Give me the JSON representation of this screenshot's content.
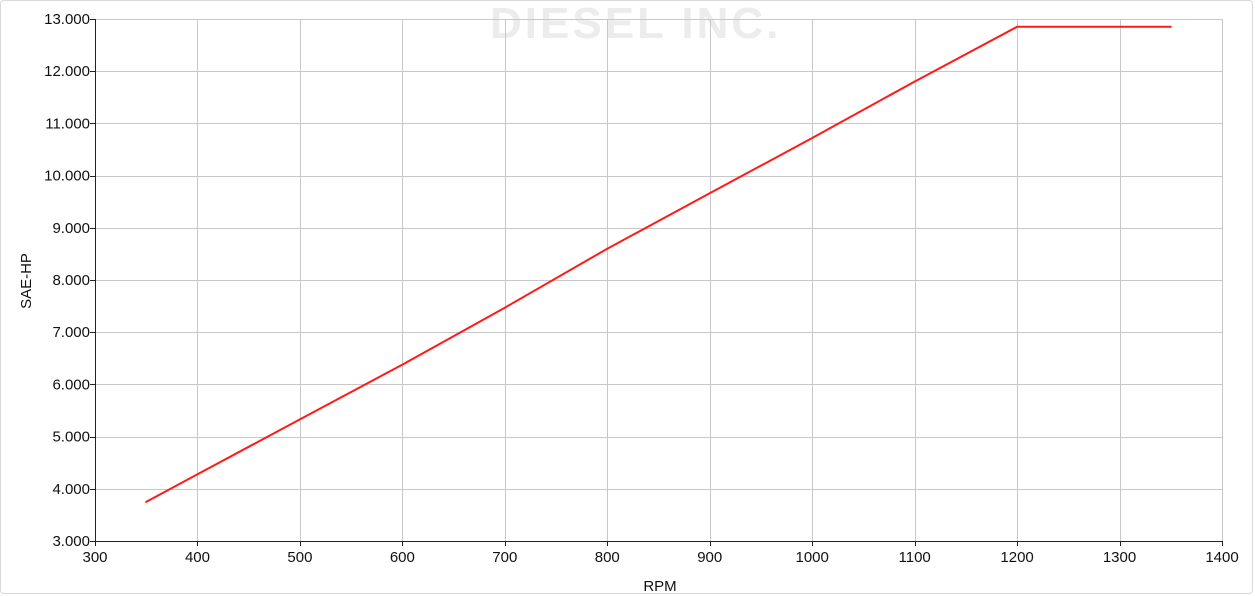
{
  "watermark": {
    "text": "DIESEL INC."
  },
  "colors": {
    "line": "#ff1a1a",
    "grid": "#c8c8c8",
    "axis": "#222222",
    "watermark": "#ececec"
  },
  "chart_data": {
    "type": "line",
    "title": "",
    "xlabel": "RPM",
    "ylabel": "SAE-HP",
    "xlim": [
      300,
      1400
    ],
    "ylim": [
      3.0,
      13.0
    ],
    "xticks": [
      300,
      400,
      500,
      600,
      700,
      800,
      900,
      1000,
      1100,
      1200,
      1300,
      1400
    ],
    "xtick_labels": [
      "300",
      "400",
      "500",
      "600",
      "700",
      "800",
      "900",
      "1000",
      "1100",
      "1200",
      "1300",
      "1400"
    ],
    "yticks": [
      3,
      4,
      5,
      6,
      7,
      8,
      9,
      10,
      11,
      12,
      13
    ],
    "ytick_labels": [
      "3.000",
      "4.000",
      "5.000",
      "6.000",
      "7.000",
      "8.000",
      "9.000",
      "10.000",
      "11.000",
      "12.000",
      "13.000"
    ],
    "grid": true,
    "legend": "none",
    "series": [
      {
        "x": [
          350,
          400,
          500,
          600,
          700,
          800,
          900,
          1000,
          1100,
          1200,
          1350
        ],
        "y": [
          3.75,
          4.28,
          5.33,
          6.38,
          7.47,
          8.6,
          9.66,
          10.72,
          11.8,
          12.85,
          12.85
        ]
      }
    ]
  }
}
